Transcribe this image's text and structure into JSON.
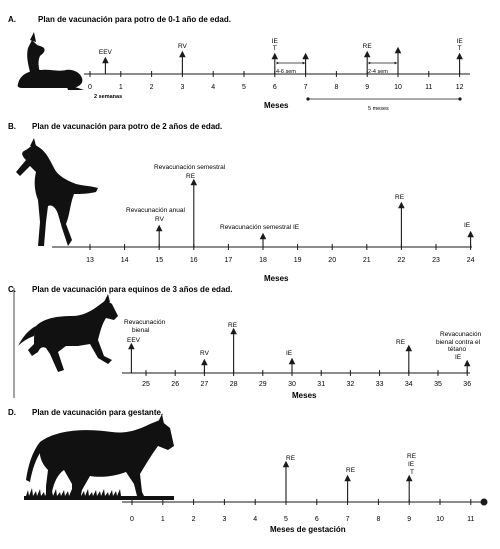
{
  "colors": {
    "ink": "#1a1a1a",
    "silhouette": "#111111"
  },
  "panels": [
    {
      "letter": "A.",
      "title": "Plan de vacunación para potro de 0-1 año de edad.",
      "axis_title": "Meses",
      "ticks": [
        "0",
        "1",
        "2",
        "3",
        "4",
        "5",
        "6",
        "7",
        "8",
        "9",
        "10",
        "11",
        "12"
      ],
      "tick_start": 0,
      "extra_tick_label": "2 semanas",
      "events": [
        {
          "at": 0.5,
          "label": "EEV"
        },
        {
          "at": 3,
          "label": "RV"
        },
        {
          "at": 6,
          "label": "IE T"
        },
        {
          "at": 7,
          "label": ""
        },
        {
          "at": 9,
          "label": "RE"
        },
        {
          "at": 10,
          "label": ""
        },
        {
          "at": 12,
          "label": "IE T"
        }
      ],
      "annotations": [
        "4-6 sem",
        "2-4 sem",
        "5 meses"
      ],
      "silhouette_icon": "lying-foal-icon"
    },
    {
      "letter": "B.",
      "title": "Plan de vacunación para potro de 2 años de edad.",
      "axis_title": "Meses",
      "ticks": [
        "13",
        "14",
        "15",
        "16",
        "17",
        "18",
        "19",
        "20",
        "21",
        "22",
        "23",
        "24"
      ],
      "tick_start": 13,
      "events": [
        {
          "at": 15,
          "label": "Revacunación anual RV"
        },
        {
          "at": 16,
          "label": "Revacunación semestral RE"
        },
        {
          "at": 18,
          "label": "Revacunación semestral IE"
        },
        {
          "at": 22,
          "label": "RE"
        },
        {
          "at": 24,
          "label": "IE"
        }
      ],
      "silhouette_icon": "rearing-foal-icon"
    },
    {
      "letter": "C.",
      "title": "Plan de vacunación para equinos de 3 años de edad.",
      "axis_title": "Meses",
      "ticks": [
        "25",
        "26",
        "27",
        "28",
        "29",
        "30",
        "31",
        "32",
        "33",
        "34",
        "35",
        "36"
      ],
      "tick_start": 25,
      "events": [
        {
          "at": 24.5,
          "label": "Revacunación bienal EEV"
        },
        {
          "at": 27,
          "label": "RV"
        },
        {
          "at": 28,
          "label": "RE"
        },
        {
          "at": 30,
          "label": "IE"
        },
        {
          "at": 34,
          "label": "RE"
        },
        {
          "at": 36,
          "label": "Revacunación bienal contra el tétano IE"
        }
      ],
      "silhouette_icon": "trotting-horse-icon"
    },
    {
      "letter": "D.",
      "title": "Plan de vacunación para gestante.",
      "axis_title": "Meses de gestación",
      "ticks": [
        "0",
        "1",
        "2",
        "3",
        "4",
        "5",
        "6",
        "7",
        "8",
        "9",
        "10",
        "11"
      ],
      "tick_start": 0,
      "events": [
        {
          "at": 5,
          "label": "RE"
        },
        {
          "at": 7,
          "label": "RE"
        },
        {
          "at": 9,
          "label": "RE IE T"
        }
      ],
      "silhouette_icon": "pregnant-mare-icon"
    }
  ]
}
